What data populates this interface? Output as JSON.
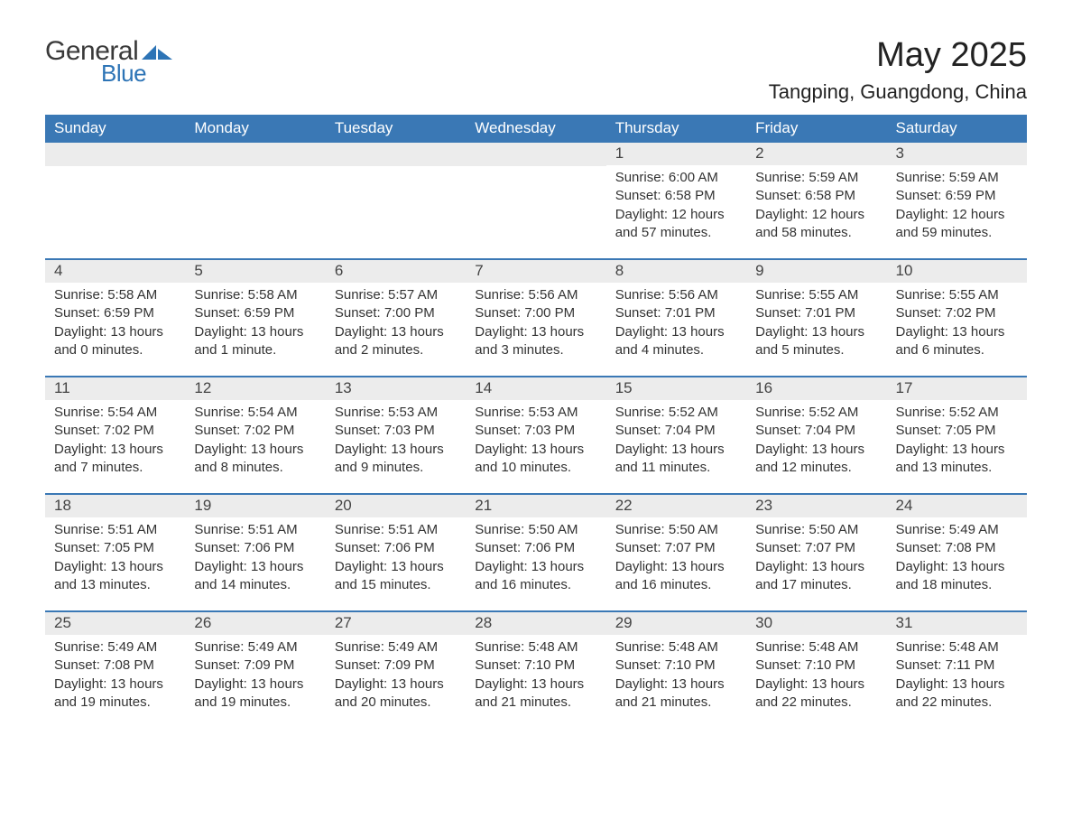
{
  "brand": {
    "general": "General",
    "blue": "Blue",
    "mark_color": "#2d74b6"
  },
  "title": "May 2025",
  "location": "Tangping, Guangdong, China",
  "colors": {
    "header_bg": "#3a78b5",
    "header_text": "#ffffff",
    "daynum_bg": "#ececec",
    "row_border": "#3a78b5",
    "body_text": "#333333",
    "page_bg": "#ffffff"
  },
  "day_labels": [
    "Sunday",
    "Monday",
    "Tuesday",
    "Wednesday",
    "Thursday",
    "Friday",
    "Saturday"
  ],
  "weeks": [
    [
      null,
      null,
      null,
      null,
      {
        "n": "1",
        "sunrise": "6:00 AM",
        "sunset": "6:58 PM",
        "daylight": "12 hours and 57 minutes."
      },
      {
        "n": "2",
        "sunrise": "5:59 AM",
        "sunset": "6:58 PM",
        "daylight": "12 hours and 58 minutes."
      },
      {
        "n": "3",
        "sunrise": "5:59 AM",
        "sunset": "6:59 PM",
        "daylight": "12 hours and 59 minutes."
      }
    ],
    [
      {
        "n": "4",
        "sunrise": "5:58 AM",
        "sunset": "6:59 PM",
        "daylight": "13 hours and 0 minutes."
      },
      {
        "n": "5",
        "sunrise": "5:58 AM",
        "sunset": "6:59 PM",
        "daylight": "13 hours and 1 minute."
      },
      {
        "n": "6",
        "sunrise": "5:57 AM",
        "sunset": "7:00 PM",
        "daylight": "13 hours and 2 minutes."
      },
      {
        "n": "7",
        "sunrise": "5:56 AM",
        "sunset": "7:00 PM",
        "daylight": "13 hours and 3 minutes."
      },
      {
        "n": "8",
        "sunrise": "5:56 AM",
        "sunset": "7:01 PM",
        "daylight": "13 hours and 4 minutes."
      },
      {
        "n": "9",
        "sunrise": "5:55 AM",
        "sunset": "7:01 PM",
        "daylight": "13 hours and 5 minutes."
      },
      {
        "n": "10",
        "sunrise": "5:55 AM",
        "sunset": "7:02 PM",
        "daylight": "13 hours and 6 minutes."
      }
    ],
    [
      {
        "n": "11",
        "sunrise": "5:54 AM",
        "sunset": "7:02 PM",
        "daylight": "13 hours and 7 minutes."
      },
      {
        "n": "12",
        "sunrise": "5:54 AM",
        "sunset": "7:02 PM",
        "daylight": "13 hours and 8 minutes."
      },
      {
        "n": "13",
        "sunrise": "5:53 AM",
        "sunset": "7:03 PM",
        "daylight": "13 hours and 9 minutes."
      },
      {
        "n": "14",
        "sunrise": "5:53 AM",
        "sunset": "7:03 PM",
        "daylight": "13 hours and 10 minutes."
      },
      {
        "n": "15",
        "sunrise": "5:52 AM",
        "sunset": "7:04 PM",
        "daylight": "13 hours and 11 minutes."
      },
      {
        "n": "16",
        "sunrise": "5:52 AM",
        "sunset": "7:04 PM",
        "daylight": "13 hours and 12 minutes."
      },
      {
        "n": "17",
        "sunrise": "5:52 AM",
        "sunset": "7:05 PM",
        "daylight": "13 hours and 13 minutes."
      }
    ],
    [
      {
        "n": "18",
        "sunrise": "5:51 AM",
        "sunset": "7:05 PM",
        "daylight": "13 hours and 13 minutes."
      },
      {
        "n": "19",
        "sunrise": "5:51 AM",
        "sunset": "7:06 PM",
        "daylight": "13 hours and 14 minutes."
      },
      {
        "n": "20",
        "sunrise": "5:51 AM",
        "sunset": "7:06 PM",
        "daylight": "13 hours and 15 minutes."
      },
      {
        "n": "21",
        "sunrise": "5:50 AM",
        "sunset": "7:06 PM",
        "daylight": "13 hours and 16 minutes."
      },
      {
        "n": "22",
        "sunrise": "5:50 AM",
        "sunset": "7:07 PM",
        "daylight": "13 hours and 16 minutes."
      },
      {
        "n": "23",
        "sunrise": "5:50 AM",
        "sunset": "7:07 PM",
        "daylight": "13 hours and 17 minutes."
      },
      {
        "n": "24",
        "sunrise": "5:49 AM",
        "sunset": "7:08 PM",
        "daylight": "13 hours and 18 minutes."
      }
    ],
    [
      {
        "n": "25",
        "sunrise": "5:49 AM",
        "sunset": "7:08 PM",
        "daylight": "13 hours and 19 minutes."
      },
      {
        "n": "26",
        "sunrise": "5:49 AM",
        "sunset": "7:09 PM",
        "daylight": "13 hours and 19 minutes."
      },
      {
        "n": "27",
        "sunrise": "5:49 AM",
        "sunset": "7:09 PM",
        "daylight": "13 hours and 20 minutes."
      },
      {
        "n": "28",
        "sunrise": "5:48 AM",
        "sunset": "7:10 PM",
        "daylight": "13 hours and 21 minutes."
      },
      {
        "n": "29",
        "sunrise": "5:48 AM",
        "sunset": "7:10 PM",
        "daylight": "13 hours and 21 minutes."
      },
      {
        "n": "30",
        "sunrise": "5:48 AM",
        "sunset": "7:10 PM",
        "daylight": "13 hours and 22 minutes."
      },
      {
        "n": "31",
        "sunrise": "5:48 AM",
        "sunset": "7:11 PM",
        "daylight": "13 hours and 22 minutes."
      }
    ]
  ],
  "labels": {
    "sunrise": "Sunrise:",
    "sunset": "Sunset:",
    "daylight": "Daylight:"
  }
}
